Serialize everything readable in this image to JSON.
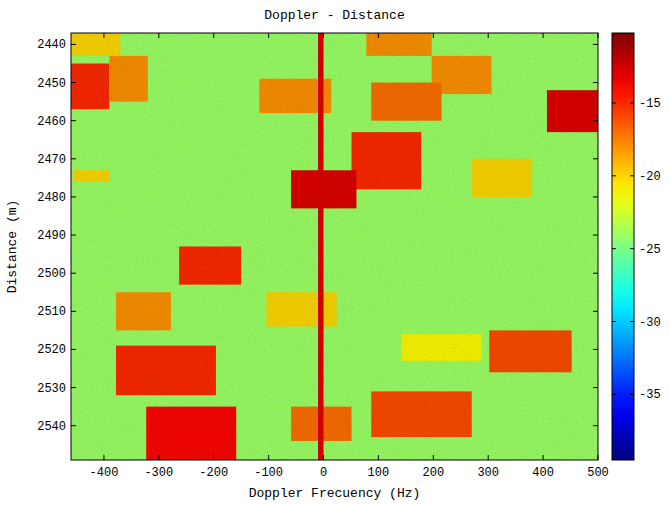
{
  "chart_data": {
    "type": "heatmap",
    "title": "Doppler - Distance",
    "x_label": "Doppler Frecuency (Hz)",
    "y_label": "Distance (m)",
    "xlim": [
      -460,
      500
    ],
    "ylim": [
      2437,
      2549
    ],
    "xticks": [
      -400,
      -300,
      -200,
      -100,
      0,
      100,
      200,
      300,
      400,
      500
    ],
    "yticks": [
      2440,
      2450,
      2460,
      2470,
      2480,
      2490,
      2500,
      2510,
      2520,
      2530,
      2540
    ],
    "cells": [
      {
        "x": [
          -460,
          500
        ],
        "y": [
          2437,
          2549
        ],
        "value": -24
      },
      {
        "x": [
          -460,
          -370
        ],
        "y": [
          2437,
          2443
        ],
        "value": -20
      },
      {
        "x": [
          -460,
          -390
        ],
        "y": [
          2445,
          2457
        ],
        "value": -15
      },
      {
        "x": [
          -390,
          -320
        ],
        "y": [
          2443,
          2455
        ],
        "value": -18
      },
      {
        "x": [
          78,
          197
        ],
        "y": [
          2437,
          2443
        ],
        "value": -18
      },
      {
        "x": [
          197,
          306
        ],
        "y": [
          2443,
          2453
        ],
        "value": -18
      },
      {
        "x": [
          -117,
          14
        ],
        "y": [
          2449,
          2458
        ],
        "value": -18
      },
      {
        "x": [
          87,
          215
        ],
        "y": [
          2450,
          2460
        ],
        "value": -17
      },
      {
        "x": [
          407,
          500
        ],
        "y": [
          2452,
          2463
        ],
        "value": -13
      },
      {
        "x": [
          51,
          178
        ],
        "y": [
          2463,
          2478
        ],
        "value": -15
      },
      {
        "x": [
          -59,
          60
        ],
        "y": [
          2473,
          2483
        ],
        "value": -13
      },
      {
        "x": [
          270,
          380
        ],
        "y": [
          2470,
          2480
        ],
        "value": -20
      },
      {
        "x": [
          -455,
          -390
        ],
        "y": [
          2473,
          2476
        ],
        "value": -20
      },
      {
        "x": [
          -263,
          -150
        ],
        "y": [
          2493,
          2503
        ],
        "value": -15
      },
      {
        "x": [
          -378,
          -278
        ],
        "y": [
          2505,
          2515
        ],
        "value": -18
      },
      {
        "x": [
          -104,
          24
        ],
        "y": [
          2505,
          2514
        ],
        "value": -20
      },
      {
        "x": [
          -378,
          -196
        ],
        "y": [
          2519,
          2532
        ],
        "value": -15
      },
      {
        "x": [
          302,
          452
        ],
        "y": [
          2515,
          2526
        ],
        "value": -16
      },
      {
        "x": [
          142,
          288
        ],
        "y": [
          2516,
          2523
        ],
        "value": -21
      },
      {
        "x": [
          -323,
          -159
        ],
        "y": [
          2535,
          2549
        ],
        "value": -14
      },
      {
        "x": [
          -59,
          51
        ],
        "y": [
          2535,
          2544
        ],
        "value": -17
      },
      {
        "x": [
          87,
          270
        ],
        "y": [
          2531,
          2543
        ],
        "value": -16
      },
      {
        "x": [
          -10,
          0
        ],
        "y": [
          2437,
          2549
        ],
        "value": -13
      }
    ],
    "colorbar": {
      "range": [
        -39.5,
        -10.2
      ],
      "ticks": [
        -35,
        -30,
        -25,
        -20,
        -15
      ]
    }
  }
}
